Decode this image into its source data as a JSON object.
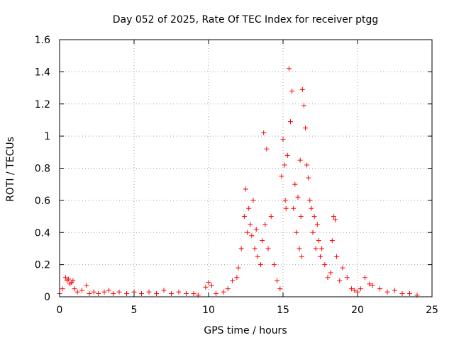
{
  "chart_data": {
    "type": "scatter",
    "title": "Day 052 of 2025, Rate Of TEC Index for receiver ptgg",
    "xlabel": "GPS time / hours",
    "ylabel": "ROTI / TECUs",
    "xlim": [
      0,
      25
    ],
    "ylim": [
      0,
      1.6
    ],
    "x_ticks": [
      "0",
      "5",
      "10",
      "15",
      "20",
      "25"
    ],
    "x_tick_values": [
      0,
      5,
      10,
      15,
      20,
      25
    ],
    "y_ticks": [
      "0",
      "0.2",
      "0.4",
      "0.6",
      "0.8",
      "1",
      "1.2",
      "1.4",
      "1.6"
    ],
    "y_tick_values": [
      0,
      0.2,
      0.4,
      0.6,
      0.8,
      1.0,
      1.2,
      1.4,
      1.6
    ],
    "grid": true,
    "marker": "+",
    "series": [
      {
        "name": "ROTI",
        "color": "#ff0000",
        "x": [
          0.0,
          0.2,
          0.4,
          0.5,
          0.6,
          0.7,
          0.8,
          0.9,
          1.0,
          1.2,
          1.5,
          1.8,
          2.0,
          2.3,
          2.6,
          3.0,
          3.3,
          3.6,
          4.0,
          4.5,
          5.0,
          5.5,
          6.0,
          6.5,
          7.0,
          7.5,
          8.0,
          8.5,
          9.0,
          9.3,
          9.8,
          10.0,
          10.2,
          10.5,
          11.0,
          11.3,
          11.6,
          11.9,
          12.0,
          12.2,
          12.4,
          12.5,
          12.6,
          12.7,
          12.8,
          12.9,
          13.0,
          13.1,
          13.2,
          13.3,
          13.5,
          13.6,
          13.7,
          13.8,
          13.9,
          14.0,
          14.2,
          14.4,
          14.6,
          14.8,
          14.9,
          15.0,
          15.1,
          15.15,
          15.2,
          15.3,
          15.4,
          15.5,
          15.6,
          15.7,
          15.8,
          15.9,
          16.0,
          16.1,
          16.15,
          16.2,
          16.25,
          16.3,
          16.4,
          16.5,
          16.6,
          16.7,
          16.8,
          16.9,
          17.0,
          17.1,
          17.2,
          17.3,
          17.4,
          17.5,
          17.6,
          17.8,
          18.0,
          18.2,
          18.3,
          18.4,
          18.5,
          18.6,
          18.8,
          19.0,
          19.3,
          19.6,
          19.8,
          20.0,
          20.2,
          20.5,
          20.8,
          21.0,
          21.5,
          22.0,
          22.5,
          23.0,
          23.5,
          24.0
        ],
        "y": [
          0.02,
          0.05,
          0.12,
          0.1,
          0.11,
          0.08,
          0.09,
          0.1,
          0.05,
          0.03,
          0.04,
          0.07,
          0.02,
          0.03,
          0.02,
          0.03,
          0.04,
          0.02,
          0.03,
          0.02,
          0.03,
          0.02,
          0.03,
          0.02,
          0.04,
          0.02,
          0.03,
          0.02,
          0.02,
          0.01,
          0.06,
          0.09,
          0.07,
          0.02,
          0.03,
          0.05,
          0.1,
          0.12,
          0.18,
          0.3,
          0.5,
          0.67,
          0.4,
          0.55,
          0.45,
          0.38,
          0.6,
          0.3,
          0.42,
          0.25,
          0.2,
          0.35,
          1.02,
          0.45,
          0.92,
          0.3,
          0.5,
          0.2,
          0.1,
          0.05,
          0.75,
          0.98,
          0.82,
          0.6,
          0.55,
          0.88,
          1.42,
          1.09,
          1.28,
          0.55,
          0.7,
          0.4,
          0.62,
          0.3,
          0.85,
          0.5,
          0.25,
          1.29,
          1.19,
          1.05,
          0.82,
          0.74,
          0.6,
          0.55,
          0.4,
          0.5,
          0.3,
          0.45,
          0.35,
          0.25,
          0.3,
          0.2,
          0.12,
          0.15,
          0.35,
          0.5,
          0.48,
          0.25,
          0.1,
          0.18,
          0.12,
          0.05,
          0.04,
          0.03,
          0.05,
          0.12,
          0.08,
          0.07,
          0.05,
          0.03,
          0.04,
          0.02,
          0.02,
          0.01
        ]
      }
    ]
  }
}
